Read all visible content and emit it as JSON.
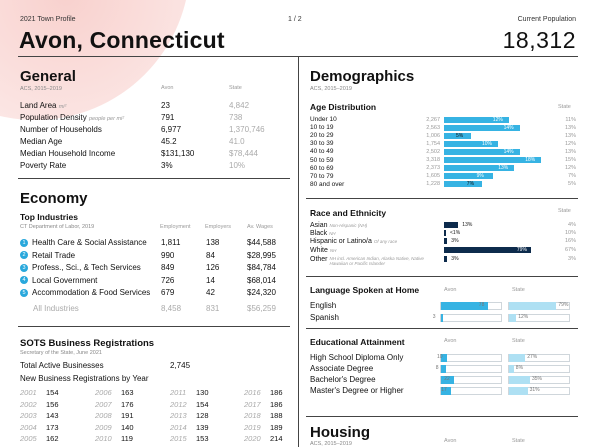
{
  "header": {
    "profile_label": "2021 Town Profile",
    "page_indicator": "1 / 2",
    "town_name": "Avon, Connecticut",
    "population_label": "Current Population",
    "population_value": "18,312"
  },
  "general": {
    "title": "General",
    "source": "ACS, 2015–2019",
    "col_town": "Avon",
    "col_state": "State",
    "rows": [
      {
        "label": "Land Area",
        "unit": "mi²",
        "town": "23",
        "state": "4,842"
      },
      {
        "label": "Population Density",
        "unit": "people per mi²",
        "town": "791",
        "state": "738"
      },
      {
        "label": "Number of Households",
        "unit": "",
        "town": "6,977",
        "state": "1,370,746"
      },
      {
        "label": "Median Age",
        "unit": "",
        "town": "45.2",
        "state": "41.0"
      },
      {
        "label": "Median Household Income",
        "unit": "",
        "town": "$131,130",
        "state": "$78,444"
      },
      {
        "label": "Poverty Rate",
        "unit": "",
        "town": "3%",
        "state": "10%"
      }
    ]
  },
  "economy": {
    "title": "Economy",
    "industries_title": "Top Industries",
    "industries_source": "CT Department of Labor, 2019",
    "col_employment": "Employment",
    "col_employers": "Employers",
    "col_wages": "Av. Wages",
    "industries": [
      {
        "rank": "1",
        "name": "Health Care & Social Assistance",
        "employment": "1,811",
        "employers": "138",
        "wages": "$44,588"
      },
      {
        "rank": "2",
        "name": "Retail Trade",
        "employment": "990",
        "employers": "84",
        "wages": "$28,995"
      },
      {
        "rank": "3",
        "name": "Profess., Sci., & Tech Services",
        "employment": "849",
        "employers": "126",
        "wages": "$84,784"
      },
      {
        "rank": "4",
        "name": "Local Government",
        "employment": "726",
        "employers": "14",
        "wages": "$68,014"
      },
      {
        "rank": "5",
        "name": "Accommodation & Food Services",
        "employment": "679",
        "employers": "42",
        "wages": "$24,320"
      }
    ],
    "all_industries": {
      "name": "All Industries",
      "employment": "8,458",
      "employers": "831",
      "wages": "$56,259"
    }
  },
  "sots": {
    "title": "SOTS Business Registrations",
    "source": "Secretary of the State, June 2021",
    "total_label": "Total Active Businesses",
    "total_value": "2,745",
    "new_label": "New Business Registrations by Year",
    "years": [
      [
        {
          "y": "2001",
          "v": "154"
        },
        {
          "y": "2006",
          "v": "163"
        },
        {
          "y": "2011",
          "v": "130"
        },
        {
          "y": "2016",
          "v": "186"
        }
      ],
      [
        {
          "y": "2002",
          "v": "156"
        },
        {
          "y": "2007",
          "v": "176"
        },
        {
          "y": "2012",
          "v": "154"
        },
        {
          "y": "2017",
          "v": "186"
        }
      ],
      [
        {
          "y": "2003",
          "v": "143"
        },
        {
          "y": "2008",
          "v": "191"
        },
        {
          "y": "2013",
          "v": "128"
        },
        {
          "y": "2018",
          "v": "188"
        }
      ],
      [
        {
          "y": "2004",
          "v": "173"
        },
        {
          "y": "2009",
          "v": "140"
        },
        {
          "y": "2014",
          "v": "139"
        },
        {
          "y": "2019",
          "v": "189"
        }
      ],
      [
        {
          "y": "2005",
          "v": "162"
        },
        {
          "y": "2010",
          "v": "119"
        },
        {
          "y": "2015",
          "v": "153"
        },
        {
          "y": "2020",
          "v": "214"
        }
      ]
    ]
  },
  "demographics": {
    "title": "Demographics",
    "source": "ACS, 2015–2019",
    "age_title": "Age Distribution",
    "state_label": "State",
    "age": [
      {
        "label": "Under 10",
        "count": "2,267",
        "pct": 12,
        "state": "11%"
      },
      {
        "label": "10 to 19",
        "count": "2,563",
        "pct": 14,
        "state": "13%"
      },
      {
        "label": "20 to 29",
        "count": "1,006",
        "pct": 5,
        "state": "13%"
      },
      {
        "label": "30 to 39",
        "count": "1,754",
        "pct": 10,
        "state": "12%"
      },
      {
        "label": "40 to 49",
        "count": "2,502",
        "pct": 14,
        "state": "13%"
      },
      {
        "label": "50 to 59",
        "count": "3,318",
        "pct": 18,
        "state": "15%"
      },
      {
        "label": "60 to 69",
        "count": "2,373",
        "pct": 13,
        "state": "12%"
      },
      {
        "label": "70 to 79",
        "count": "1,605",
        "pct": 9,
        "state": "7%"
      },
      {
        "label": "80 and over",
        "count": "1,228",
        "pct": 7,
        "state": "5%"
      }
    ],
    "race_title": "Race and Ethnicity",
    "race": [
      {
        "label": "Asian",
        "note": "Non-Hispanic (NH)",
        "pct": 13,
        "text": "13%",
        "state": "4%"
      },
      {
        "label": "Black",
        "note": "NH",
        "pct": 1,
        "text": "<1%",
        "state": "10%"
      },
      {
        "label": "Hispanic or Latino/a",
        "note": "Of any race",
        "pct": 3,
        "text": "3%",
        "state": "16%"
      },
      {
        "label": "White",
        "note": "NH",
        "pct": 79,
        "text": "79%",
        "state": "67%"
      },
      {
        "label": "Other",
        "note": "NH incl. American Indian, Alaska Native, Native Hawaiian or Pacific Islander",
        "pct": 3,
        "text": "3%",
        "state": "3%"
      }
    ],
    "lang_title": "Language Spoken at Home",
    "col_town": "Avon",
    "col_state": "State",
    "languages": [
      {
        "label": "English",
        "town": 78,
        "state": 79,
        "town_text": "78",
        "state_text": "79%"
      },
      {
        "label": "Spanish",
        "town": 3,
        "state": 12,
        "town_text": "3",
        "state_text": "12%"
      }
    ],
    "edu_title": "Educational Attainment",
    "education": [
      {
        "label": "High School Diploma Only",
        "town": 10,
        "state": 27,
        "town_text": "10",
        "state_text": "27%"
      },
      {
        "label": "Associate Degree",
        "town": 8,
        "state": 8,
        "town_text": "8",
        "state_text": "8%"
      },
      {
        "label": "Bachelor's Degree",
        "town": 22,
        "state": 35,
        "town_text": "22",
        "state_text": "35%"
      },
      {
        "label": "Master's Degree or Higher",
        "town": 17,
        "state": 31,
        "town_text": "17",
        "state_text": "31%"
      }
    ]
  },
  "housing": {
    "title": "Housing",
    "source": "ACS, 2015–2019",
    "col_town": "Avon",
    "col_state": "State"
  },
  "colors": {
    "accent": "#36b3e3",
    "dark": "#0d2b4c",
    "rule": "#444444"
  }
}
